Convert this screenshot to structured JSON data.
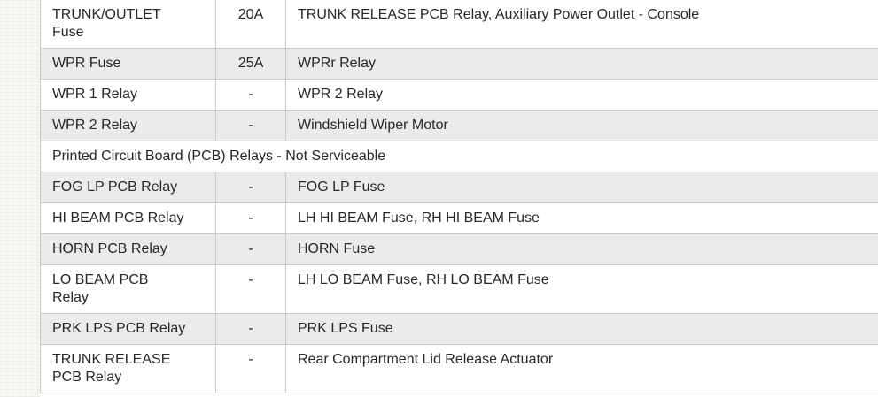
{
  "colors": {
    "text": "#25272c",
    "row_border": "#c9c9c9",
    "shaded_row_background": "#ebebec",
    "page_margin_background": "#f8f7f4"
  },
  "table": {
    "description": "fuse-and-relay-usage-table",
    "rows": [
      {
        "shaded": false,
        "c1": "TRUNK/OUTLET\nFuse",
        "c2": "20A",
        "c3": "TRUNK RELEASE PCB Relay, Auxiliary Power Outlet - Console"
      },
      {
        "shaded": true,
        "c1": "WPR Fuse",
        "c2": "25A",
        "c3": "WPRr Relay"
      },
      {
        "shaded": false,
        "c1": "WPR 1 Relay",
        "c2": "-",
        "c3": "WPR 2 Relay"
      },
      {
        "shaded": true,
        "c1": "WPR 2 Relay",
        "c2": "-",
        "c3": "Windshield Wiper Motor"
      },
      {
        "shaded": false,
        "span_label": "Printed Circuit Board (PCB) Relays - Not Serviceable"
      },
      {
        "shaded": true,
        "c1": "FOG LP PCB Relay",
        "c2": "-",
        "c3": "FOG LP Fuse"
      },
      {
        "shaded": false,
        "c1": "HI BEAM PCB Relay",
        "c2": "-",
        "c3": "LH HI BEAM Fuse, RH HI BEAM Fuse"
      },
      {
        "shaded": true,
        "c1": "HORN PCB Relay",
        "c2": "-",
        "c3": "HORN Fuse"
      },
      {
        "shaded": false,
        "c1": "LO BEAM PCB\nRelay",
        "c2": "-",
        "c3": "LH LO BEAM Fuse, RH LO BEAM Fuse"
      },
      {
        "shaded": true,
        "c1": "PRK LPS PCB Relay",
        "c2": "-",
        "c3": "PRK LPS Fuse"
      },
      {
        "shaded": false,
        "c1": "TRUNK RELEASE\nPCB Relay",
        "c2": "-",
        "c3": "Rear Compartment Lid Release Actuator"
      }
    ]
  }
}
